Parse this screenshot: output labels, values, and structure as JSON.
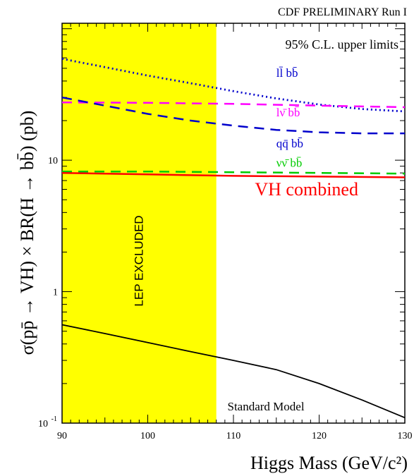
{
  "chart_data": {
    "type": "line",
    "title": "CDF  PRELIMINARY  Run I",
    "subtitle": "95%  C.L. upper limits",
    "xlabel": "Higgs Mass (GeV/c²)",
    "ylabel": "σ(pp̄ → VH) × BR(H → bb̄) (pb)",
    "xlim": [
      90,
      130
    ],
    "ylim": [
      0.1,
      110
    ],
    "yscale": "log",
    "x_ticks": [
      "90",
      "100",
      "110",
      "120",
      "130"
    ],
    "y_tick_labels": [
      {
        "value": 10,
        "base": "10",
        "exp": ""
      },
      {
        "value": 1,
        "base": "1",
        "exp": ""
      },
      {
        "value": 0.1,
        "base": "10",
        "exp": "-1"
      }
    ],
    "excluded_region": {
      "x": [
        90,
        108
      ],
      "label": "LEP EXCLUDED",
      "color": "#ffff00"
    },
    "series": [
      {
        "name": "ll̄ bb̄",
        "color": "#0000cc",
        "style": "dotted",
        "x": [
          90,
          95,
          100,
          105,
          110,
          115,
          120,
          125,
          130
        ],
        "y": [
          59,
          51,
          44,
          38.5,
          33.5,
          29.5,
          26.5,
          24.5,
          23.5
        ]
      },
      {
        "name": "lν̄ bb̄",
        "color": "#ff00ff",
        "style": "dashed",
        "x": [
          90,
          100,
          110,
          120,
          130
        ],
        "y": [
          27.5,
          27.3,
          26.8,
          26.0,
          25.3
        ]
      },
      {
        "name": "qq̄ bb̄",
        "color": "#0000cc",
        "style": "dashed",
        "x": [
          90,
          95,
          100,
          105,
          110,
          115,
          120,
          125,
          130
        ],
        "y": [
          30,
          26,
          22.5,
          20,
          18.3,
          17,
          16.3,
          16,
          16
        ]
      },
      {
        "name": "νν̄ bb̄",
        "color": "#00cc00",
        "style": "dashed",
        "x": [
          90,
          100,
          110,
          120,
          130
        ],
        "y": [
          8.2,
          8.2,
          8.1,
          8.0,
          7.9
        ]
      },
      {
        "name": "VH combined",
        "color": "#ff0000",
        "style": "solid",
        "x": [
          90,
          100,
          110,
          120,
          130
        ],
        "y": [
          8.0,
          7.8,
          7.6,
          7.5,
          7.4
        ]
      },
      {
        "name": "Standard Model",
        "color": "#000000",
        "style": "solid",
        "x": [
          90,
          95,
          100,
          105,
          110,
          115,
          120,
          125,
          130
        ],
        "y": [
          0.56,
          0.48,
          0.41,
          0.35,
          0.3,
          0.255,
          0.2,
          0.15,
          0.11
        ]
      }
    ],
    "labels": [
      {
        "text": "ll̄ bb̄",
        "color": "#0000cc",
        "x": 115,
        "y": 43,
        "size": 17
      },
      {
        "text": "lν̄ bb̄",
        "color": "#ff00ff",
        "x": 115,
        "y": 21.5,
        "size": 17
      },
      {
        "text": "qq̄ bb̄",
        "color": "#0000cc",
        "x": 115,
        "y": 12.5,
        "size": 17
      },
      {
        "text": "νν̄ bb̄",
        "color": "#00cc00",
        "x": 115,
        "y": 8.9,
        "size": 17
      },
      {
        "text": "VH combined",
        "color": "#ff0000",
        "x": 112.5,
        "y": 5.4,
        "size": 26
      },
      {
        "text": "Standard Model",
        "color": "#000000",
        "x": 109.3,
        "y": 0.125,
        "size": 17
      }
    ]
  }
}
